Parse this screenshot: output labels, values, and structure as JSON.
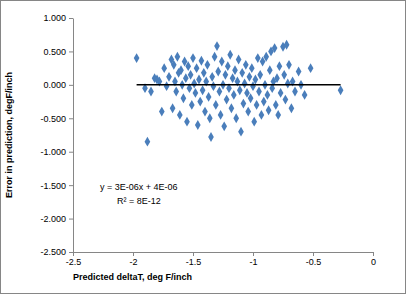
{
  "chart_data": {
    "type": "scatter",
    "x_label": "Predicted deltaT, deg F/inch",
    "y_label": "Error in prediction, degF/inch",
    "annotations": [
      "y = 3E-06x + 4E-06",
      "R² = 8E-12"
    ],
    "xlim": [
      -2.5,
      0
    ],
    "xticks": [
      -2.5,
      -2,
      -1.5,
      -1,
      -0.5,
      0
    ],
    "ylim": [
      -2.5,
      1
    ],
    "yticks": [
      {
        "value": 1,
        "label": "1.000"
      },
      {
        "value": 0.5,
        "label": "0.500"
      },
      {
        "value": 0,
        "label": "0.000"
      },
      {
        "value": -0.5,
        "label": "-0.500"
      },
      {
        "value": -1,
        "label": "-1.000"
      },
      {
        "value": -1.5,
        "label": "-1.500"
      },
      {
        "value": -2,
        "label": "-2.000"
      },
      {
        "value": -2.5,
        "label": "-2.500"
      }
    ],
    "grid": false,
    "series": [
      {
        "type": "scatter",
        "color": "#4a7ebb",
        "marker": "diamond",
        "x": [
          -1.97,
          -1.9,
          -1.88,
          -1.85,
          -1.82,
          -1.8,
          -1.78,
          -1.76,
          -1.74,
          -1.72,
          -1.7,
          -1.68,
          -1.67,
          -1.66,
          -1.65,
          -1.64,
          -1.63,
          -1.62,
          -1.61,
          -1.6,
          -1.59,
          -1.58,
          -1.57,
          -1.56,
          -1.55,
          -1.54,
          -1.53,
          -1.52,
          -1.51,
          -1.5,
          -1.49,
          -1.48,
          -1.47,
          -1.46,
          -1.45,
          -1.44,
          -1.43,
          -1.42,
          -1.41,
          -1.4,
          -1.39,
          -1.38,
          -1.37,
          -1.36,
          -1.35,
          -1.34,
          -1.33,
          -1.32,
          -1.31,
          -1.3,
          -1.29,
          -1.28,
          -1.27,
          -1.26,
          -1.25,
          -1.24,
          -1.23,
          -1.22,
          -1.21,
          -1.2,
          -1.19,
          -1.18,
          -1.17,
          -1.16,
          -1.15,
          -1.14,
          -1.13,
          -1.12,
          -1.11,
          -1.1,
          -1.09,
          -1.08,
          -1.07,
          -1.06,
          -1.05,
          -1.04,
          -1.03,
          -1.02,
          -1.01,
          -1.0,
          -0.99,
          -0.98,
          -0.97,
          -0.96,
          -0.95,
          -0.94,
          -0.93,
          -0.92,
          -0.91,
          -0.9,
          -0.89,
          -0.88,
          -0.87,
          -0.86,
          -0.85,
          -0.84,
          -0.83,
          -0.82,
          -0.81,
          -0.8,
          -0.79,
          -0.78,
          -0.77,
          -0.75,
          -0.74,
          -0.73,
          -0.72,
          -0.71,
          -0.7,
          -0.68,
          -0.67,
          -0.65,
          -0.62,
          -0.6,
          -0.57,
          -0.52,
          -0.27
        ],
        "values": [
          0.4,
          -0.05,
          -0.85,
          -0.1,
          0.1,
          0.08,
          0.05,
          -0.4,
          0.25,
          -0.02,
          0.12,
          0.38,
          -0.35,
          0.3,
          0.05,
          -0.1,
          0.42,
          0.18,
          -0.45,
          0.22,
          0.0,
          -0.2,
          0.35,
          0.1,
          -0.55,
          0.28,
          -0.05,
          0.15,
          -0.3,
          0.4,
          0.02,
          -0.12,
          0.25,
          -0.6,
          0.08,
          -0.25,
          0.36,
          -0.08,
          0.18,
          -0.4,
          0.05,
          0.3,
          -0.18,
          -0.5,
          -0.78,
          0.12,
          -0.02,
          0.42,
          -0.3,
          0.58,
          0.2,
          -0.1,
          -0.45,
          0.35,
          0.0,
          -0.62,
          0.15,
          -0.22,
          0.28,
          -0.05,
          0.45,
          -0.35,
          0.1,
          -0.15,
          0.22,
          -0.5,
          0.05,
          0.38,
          -0.08,
          -0.7,
          0.18,
          -0.28,
          0.02,
          0.3,
          -0.12,
          -0.4,
          0.12,
          -0.2,
          0.25,
          -0.02,
          -0.55,
          0.08,
          -0.3,
          0.4,
          -0.1,
          0.15,
          -0.45,
          0.35,
          -0.25,
          0.0,
          0.42,
          -0.15,
          -0.38,
          0.22,
          0.5,
          -0.05,
          0.05,
          0.55,
          -0.3,
          0.1,
          -0.45,
          0.28,
          -0.12,
          0.57,
          0.15,
          -0.22,
          0.6,
          0.02,
          0.3,
          -0.35,
          0.05,
          -0.1,
          0.2,
          0.0,
          -0.15,
          0.25,
          -0.08
        ]
      },
      {
        "type": "line",
        "color": "#000000",
        "line_style": "solid",
        "x": [
          -1.97,
          -0.27
        ],
        "values": [
          0,
          0
        ]
      }
    ]
  }
}
